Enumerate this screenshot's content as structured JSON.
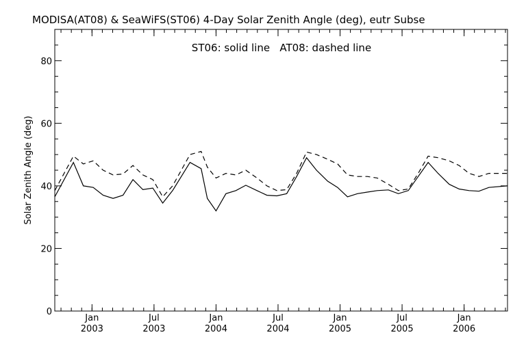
{
  "chart_data": {
    "type": "line",
    "title": "MODISA(AT08) & SeaWiFS(ST06) 4-Day Solar Zenith Angle (deg), eutr Subse",
    "annotation": "ST06: solid line   AT08: dashed line",
    "ylabel": "Solar Zenith Angle (deg)",
    "xlabel": "",
    "ylim": [
      0,
      90
    ],
    "xlim": [
      2002.7,
      2006.35
    ],
    "yticks": [
      0,
      20,
      40,
      60,
      80
    ],
    "xticks": [
      {
        "month": "Jan",
        "year": "2003",
        "x": 2003.0
      },
      {
        "month": "Jul",
        "year": "2003",
        "x": 2003.5
      },
      {
        "month": "Jan",
        "year": "2004",
        "x": 2004.0
      },
      {
        "month": "Jul",
        "year": "2004",
        "x": 2004.5
      },
      {
        "month": "Jan",
        "year": "2005",
        "x": 2005.0
      },
      {
        "month": "Jul",
        "year": "2005",
        "x": 2005.5
      },
      {
        "month": "Jan",
        "year": "2006",
        "x": 2006.0
      }
    ],
    "grid": false,
    "series": [
      {
        "name": "ST06",
        "style": "solid",
        "x": [
          2002.7,
          2002.85,
          2002.93,
          2003.01,
          2003.09,
          2003.17,
          2003.25,
          2003.33,
          2003.41,
          2003.49,
          2003.57,
          2003.65,
          2003.72,
          2003.79,
          2003.88,
          2003.93,
          2004.0,
          2004.08,
          2004.16,
          2004.24,
          2004.33,
          2004.41,
          2004.49,
          2004.57,
          2004.65,
          2004.73,
          2004.81,
          2004.9,
          2004.98,
          2005.06,
          2005.14,
          2005.22,
          2005.3,
          2005.39,
          2005.47,
          2005.55,
          2005.63,
          2005.71,
          2005.79,
          2005.88,
          2005.96,
          2006.04,
          2006.12,
          2006.2,
          2006.35
        ],
        "values": [
          36.5,
          47.5,
          40,
          39.5,
          37,
          36,
          37,
          42,
          38.8,
          39.3,
          34.5,
          38.5,
          43,
          47.5,
          45.5,
          36,
          32,
          37.5,
          38.5,
          40.2,
          38.5,
          37,
          36.8,
          37.5,
          43,
          49,
          45,
          41.5,
          39.5,
          36.5,
          37.5,
          38,
          38.5,
          38.7,
          37.5,
          38.5,
          43,
          47.5,
          44,
          40.5,
          39,
          38.5,
          38.3,
          39.5,
          40
        ]
      },
      {
        "name": "AT08",
        "style": "dashed",
        "x": [
          2002.7,
          2002.85,
          2002.93,
          2003.01,
          2003.09,
          2003.17,
          2003.25,
          2003.33,
          2003.41,
          2003.49,
          2003.57,
          2003.65,
          2003.72,
          2003.79,
          2003.88,
          2003.93,
          2004.0,
          2004.08,
          2004.16,
          2004.24,
          2004.33,
          2004.41,
          2004.49,
          2004.57,
          2004.65,
          2004.73,
          2004.81,
          2004.9,
          2004.98,
          2005.06,
          2005.14,
          2005.22,
          2005.3,
          2005.39,
          2005.47,
          2005.55,
          2005.63,
          2005.71,
          2005.79,
          2005.88,
          2005.96,
          2006.04,
          2006.12,
          2006.2,
          2006.35
        ],
        "values": [
          38.5,
          49.5,
          47,
          48,
          45,
          43.5,
          43.8,
          46.5,
          43.5,
          42,
          36.5,
          40,
          45,
          50,
          51,
          46,
          42.5,
          44,
          43.5,
          45,
          42.5,
          40,
          38.5,
          38.8,
          44,
          50.8,
          50,
          48.5,
          47,
          43.5,
          43,
          43,
          42.5,
          40.5,
          38.5,
          39,
          44,
          49.5,
          49,
          48,
          46.5,
          44,
          43,
          44,
          44
        ]
      }
    ]
  }
}
